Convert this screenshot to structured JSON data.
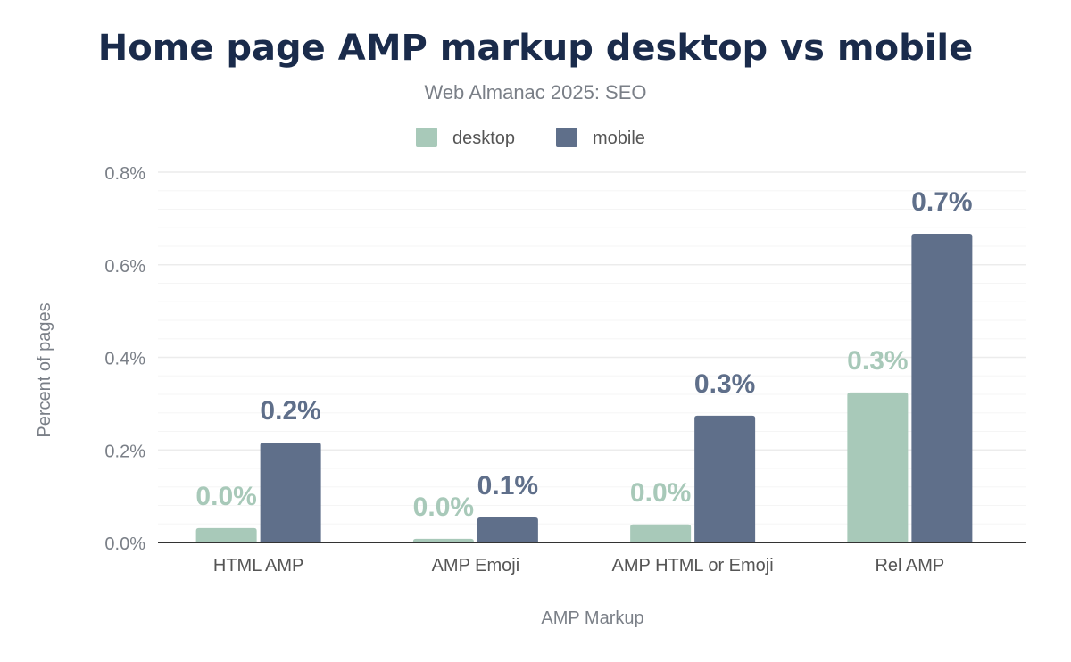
{
  "chart_data": {
    "type": "bar",
    "title": "Home page AMP markup desktop vs mobile",
    "subtitle": "Web Almanac 2025: SEO",
    "xlabel": "AMP Markup",
    "ylabel": "Percent of pages",
    "categories": [
      "HTML AMP",
      "AMP Emoji",
      "AMP HTML or Emoji",
      "Rel AMP"
    ],
    "series": [
      {
        "name": "desktop",
        "color": "#a8c9b9",
        "values": [
          0.031,
          0.008,
          0.039,
          0.324
        ],
        "labels": [
          "0.0%",
          "0.0%",
          "0.0%",
          "0.3%"
        ]
      },
      {
        "name": "mobile",
        "color": "#5f6f8a",
        "values": [
          0.216,
          0.054,
          0.274,
          0.667
        ],
        "labels": [
          "0.2%",
          "0.1%",
          "0.3%",
          "0.7%"
        ]
      }
    ],
    "ylim": [
      0,
      0.8
    ],
    "yticks": [
      "0.0%",
      "0.2%",
      "0.4%",
      "0.6%",
      "0.8%"
    ],
    "grid": true,
    "legend": "top-center"
  }
}
